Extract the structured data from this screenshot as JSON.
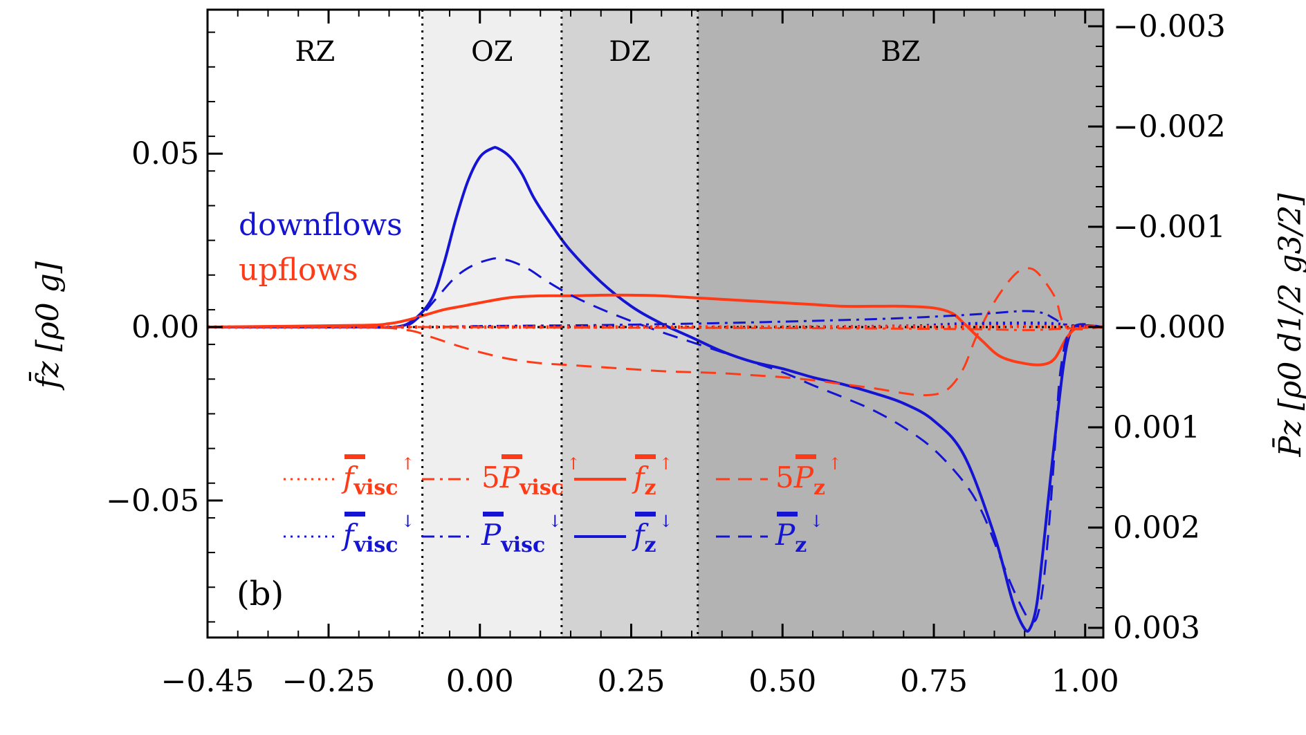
{
  "chart_data": {
    "type": "line",
    "panel_label": "(b)",
    "xlabel": "",
    "ylabel_left": "f̄z [ρ0 g]",
    "ylabel_right": "P̄z [ρ0 d1/2 g3/2]",
    "xlim": [
      -0.45,
      1.03
    ],
    "ylim_left": [
      -0.0895,
      0.0915
    ],
    "ylim_right": [
      -0.003,
      0.003
    ],
    "x_ticks": [
      -0.45,
      -0.25,
      0.0,
      0.25,
      0.5,
      0.75,
      1.0
    ],
    "x_tick_labels": [
      "−0.45",
      "−0.25",
      "0.00",
      "0.25",
      "0.50",
      "0.75",
      "1.00"
    ],
    "y_left_ticks": [
      0.05,
      0.0,
      -0.05
    ],
    "y_left_tick_labels": [
      "0.05",
      "0.00",
      "−0.05"
    ],
    "y_right_ticks": [
      0.003,
      0.002,
      0.001,
      0.0,
      -0.001,
      -0.002,
      -0.003
    ],
    "y_right_tick_labels": [
      "0.003",
      "0.002",
      "0.001",
      "−0.000",
      "−0.001",
      "−0.002",
      "−0.003"
    ],
    "zones": [
      {
        "name": "RZ",
        "x_start": -0.45,
        "x_end": -0.095,
        "shade": "#ffffff"
      },
      {
        "name": "OZ",
        "x_start": -0.095,
        "x_end": 0.135,
        "shade": "#efefef"
      },
      {
        "name": "DZ",
        "x_start": 0.135,
        "x_end": 0.36,
        "shade": "#d3d3d3"
      },
      {
        "name": "BZ",
        "x_start": 0.36,
        "x_end": 1.03,
        "shade": "#b3b3b3"
      }
    ],
    "annotations": {
      "downflows": "downflows",
      "upflows": "upflows"
    },
    "colors": {
      "up": "#ff3a17",
      "down": "#1414d2"
    },
    "series": [
      {
        "name": "f_z down",
        "color": "#1414d2",
        "style": "solid",
        "axis": "left",
        "x": [
          -0.45,
          -0.2,
          -0.14,
          -0.11,
          -0.08,
          -0.06,
          -0.04,
          -0.02,
          0.0,
          0.02,
          0.03,
          0.05,
          0.07,
          0.09,
          0.12,
          0.15,
          0.2,
          0.25,
          0.3,
          0.35,
          0.4,
          0.45,
          0.5,
          0.55,
          0.6,
          0.65,
          0.7,
          0.75,
          0.8,
          0.85,
          0.88,
          0.9,
          0.91,
          0.92,
          0.93,
          0.95,
          0.97,
          0.99,
          1.03
        ],
        "y": [
          0.0,
          0.0,
          0.0,
          0.002,
          0.008,
          0.018,
          0.031,
          0.042,
          0.049,
          0.0515,
          0.0515,
          0.049,
          0.044,
          0.037,
          0.029,
          0.022,
          0.013,
          0.006,
          0.001,
          -0.003,
          -0.007,
          -0.01,
          -0.012,
          -0.0145,
          -0.0165,
          -0.019,
          -0.022,
          -0.027,
          -0.037,
          -0.06,
          -0.079,
          -0.087,
          -0.0865,
          -0.08,
          -0.065,
          -0.032,
          -0.005,
          0.0,
          0.0
        ]
      },
      {
        "name": "f_z up",
        "color": "#ff3a17",
        "style": "solid",
        "axis": "left",
        "x": [
          -0.45,
          -0.2,
          -0.15,
          -0.12,
          -0.09,
          -0.06,
          -0.03,
          0.0,
          0.05,
          0.1,
          0.15,
          0.2,
          0.25,
          0.3,
          0.35,
          0.4,
          0.45,
          0.5,
          0.55,
          0.6,
          0.65,
          0.7,
          0.75,
          0.78,
          0.8,
          0.83,
          0.86,
          0.9,
          0.93,
          0.95,
          0.97,
          0.99,
          1.03
        ],
        "y": [
          0.0,
          0.0005,
          0.001,
          0.002,
          0.0035,
          0.005,
          0.006,
          0.007,
          0.0085,
          0.009,
          0.009,
          0.0092,
          0.0092,
          0.009,
          0.0085,
          0.008,
          0.0075,
          0.007,
          0.0065,
          0.006,
          0.006,
          0.006,
          0.0055,
          0.004,
          0.001,
          -0.004,
          -0.0085,
          -0.0105,
          -0.0108,
          -0.009,
          -0.003,
          0.0,
          0.0
        ]
      },
      {
        "name": "P_z down",
        "color": "#1414d2",
        "style": "dashed",
        "axis": "right",
        "x": [
          -0.45,
          -0.2,
          -0.13,
          -0.1,
          -0.07,
          -0.04,
          -0.01,
          0.02,
          0.03,
          0.05,
          0.08,
          0.11,
          0.15,
          0.2,
          0.25,
          0.3,
          0.35,
          0.4,
          0.45,
          0.5,
          0.55,
          0.6,
          0.65,
          0.7,
          0.75,
          0.8,
          0.83,
          0.86,
          0.88,
          0.9,
          0.91,
          0.92,
          0.93,
          0.94,
          0.95,
          0.96,
          0.98,
          1.03
        ],
        "y": [
          0.0,
          0.0,
          0.0,
          -0.0001,
          -0.0003,
          -0.0005,
          -0.00062,
          -0.00068,
          -0.00068,
          -0.00066,
          -0.00058,
          -0.00046,
          -0.00032,
          -0.00018,
          -6e-05,
          5e-05,
          0.00015,
          0.00025,
          0.00035,
          0.00045,
          0.00058,
          0.0007,
          0.00083,
          0.001,
          0.00122,
          0.00155,
          0.00185,
          0.0023,
          0.0026,
          0.00285,
          0.00293,
          0.0029,
          0.0026,
          0.002,
          0.0012,
          0.0004,
          0.0,
          0.0
        ]
      },
      {
        "name": "5P_z up",
        "color": "#ff3a17",
        "style": "dashed",
        "axis": "right",
        "x": [
          -0.45,
          -0.2,
          -0.12,
          -0.08,
          -0.04,
          0.0,
          0.05,
          0.1,
          0.15,
          0.2,
          0.25,
          0.3,
          0.35,
          0.4,
          0.45,
          0.5,
          0.55,
          0.6,
          0.65,
          0.7,
          0.73,
          0.76,
          0.78,
          0.8,
          0.82,
          0.85,
          0.88,
          0.9,
          0.92,
          0.95,
          0.97,
          1.03
        ],
        "y": [
          0.0,
          0.0,
          3e-05,
          0.0001,
          0.00018,
          0.00025,
          0.00032,
          0.00036,
          0.00038,
          0.0004,
          0.00042,
          0.00044,
          0.00045,
          0.00046,
          0.00048,
          0.0005,
          0.00053,
          0.00057,
          0.00061,
          0.00066,
          0.00068,
          0.00066,
          0.00058,
          0.0004,
          0.0001,
          -0.00025,
          -0.0005,
          -0.00058,
          -0.00055,
          -0.0003,
          0.0,
          0.0
        ]
      },
      {
        "name": "P_visc down",
        "color": "#1414d2",
        "style": "dashdot",
        "axis": "right",
        "x": [
          -0.45,
          -0.1,
          0.0,
          0.2,
          0.4,
          0.6,
          0.7,
          0.8,
          0.85,
          0.9,
          0.93,
          0.95,
          0.97,
          1.03
        ],
        "y": [
          0.0,
          0.0,
          -1e-05,
          -2e-05,
          -4e-05,
          -7e-05,
          -9e-05,
          -0.00012,
          -0.00014,
          -0.00016,
          -0.00014,
          -8e-05,
          -2e-05,
          0.0
        ]
      },
      {
        "name": "5P_visc up",
        "color": "#ff3a17",
        "style": "dashdot",
        "axis": "right",
        "x": [
          -0.45,
          -0.1,
          0.2,
          0.5,
          0.8,
          0.9,
          0.95,
          1.03
        ],
        "y": [
          0.0,
          0.0,
          5e-06,
          1e-05,
          2e-05,
          3e-05,
          2e-05,
          0.0
        ]
      },
      {
        "name": "f_visc down",
        "color": "#1414d2",
        "style": "dotted",
        "axis": "left",
        "x": [
          -0.45,
          -0.1,
          0.2,
          0.5,
          0.7,
          0.75,
          0.8,
          0.9,
          0.95,
          0.98,
          1.03
        ],
        "y": [
          0.0,
          0.0,
          0.0,
          0.0,
          0.0002,
          0.0005,
          0.0009,
          0.0011,
          0.0009,
          0.0003,
          0.0
        ]
      },
      {
        "name": "f_visc up",
        "color": "#ff3a17",
        "style": "dotted",
        "axis": "left",
        "x": [
          -0.45,
          -0.1,
          0.2,
          0.5,
          0.8,
          0.9,
          0.95,
          1.03
        ],
        "y": [
          0.0,
          0.0,
          0.0,
          0.0,
          0.0001,
          0.0002,
          0.0001,
          0.0
        ]
      }
    ],
    "legend": {
      "up": [
        {
          "style": "dotted",
          "prefix": "",
          "sym": "f",
          "sub": "visc",
          "arrow": "↑"
        },
        {
          "style": "dashdot",
          "prefix": "5",
          "sym": "P",
          "sub": "visc",
          "arrow": "↑"
        },
        {
          "style": "solid",
          "prefix": "",
          "sym": "f",
          "sub": "z",
          "arrow": "↑"
        },
        {
          "style": "dashed",
          "prefix": "5",
          "sym": "P",
          "sub": "z",
          "arrow": "↑"
        }
      ],
      "down": [
        {
          "style": "dotted",
          "prefix": "",
          "sym": "f",
          "sub": "visc",
          "arrow": "↓"
        },
        {
          "style": "dashdot",
          "prefix": "",
          "sym": "P",
          "sub": "visc",
          "arrow": "↓"
        },
        {
          "style": "solid",
          "prefix": "",
          "sym": "f",
          "sub": "z",
          "arrow": "↓"
        },
        {
          "style": "dashed",
          "prefix": "",
          "sym": "P",
          "sub": "z",
          "arrow": "↓"
        }
      ]
    }
  }
}
